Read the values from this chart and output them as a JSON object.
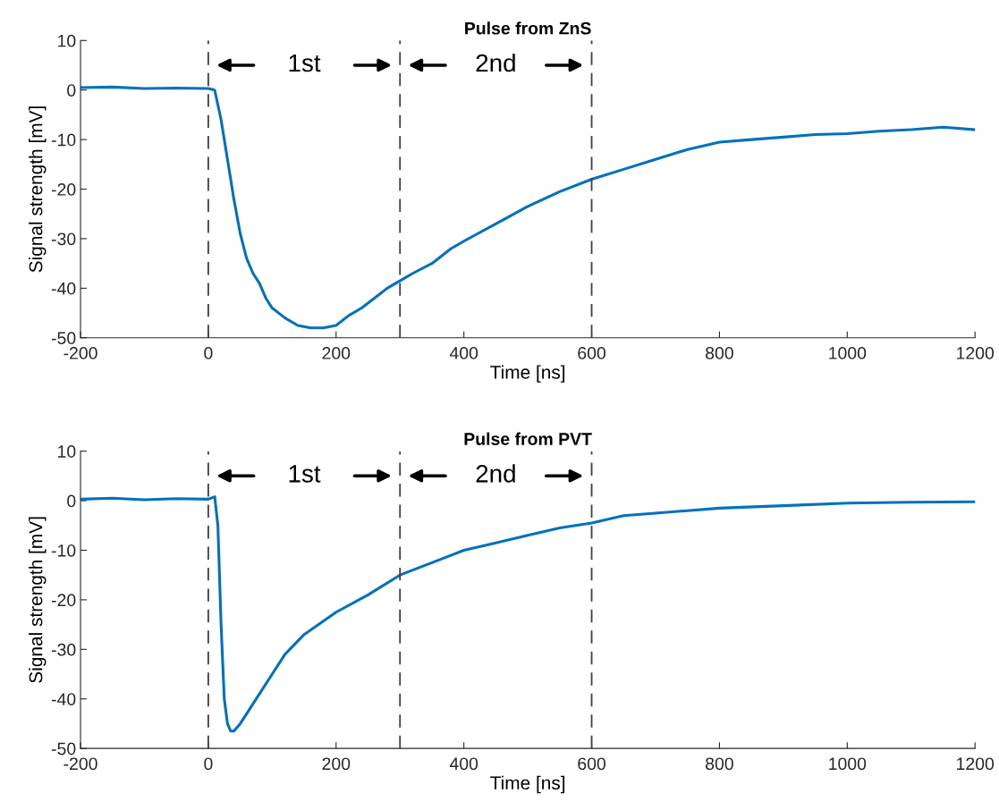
{
  "chart_data": [
    {
      "type": "line",
      "title": "Pulse from ZnS",
      "xlabel": "Time [ns]",
      "ylabel": "Signal strength [mV]",
      "xlim": [
        -200,
        1200
      ],
      "ylim": [
        -50,
        10
      ],
      "xticks": [
        -200,
        0,
        200,
        400,
        600,
        800,
        1000,
        1200
      ],
      "yticks": [
        -50,
        -40,
        -30,
        -20,
        -10,
        0,
        10
      ],
      "grid": false,
      "legend": false,
      "line_style": "solid",
      "x": [
        -200,
        -150,
        -100,
        -50,
        0,
        10,
        20,
        30,
        40,
        50,
        60,
        70,
        80,
        90,
        100,
        120,
        140,
        160,
        180,
        200,
        220,
        240,
        260,
        280,
        300,
        320,
        350,
        380,
        400,
        450,
        500,
        550,
        600,
        650,
        700,
        750,
        800,
        850,
        900,
        950,
        1000,
        1050,
        1100,
        1150,
        1200
      ],
      "series": [
        {
          "color": "#0072bd",
          "values": [
            0.5,
            0.6,
            0.3,
            0.4,
            0.3,
            0,
            -6,
            -14,
            -22,
            -29,
            -34,
            -37,
            -39,
            -42,
            -44,
            -46,
            -47.5,
            -48,
            -48,
            -47.5,
            -45.5,
            -44,
            -42,
            -40,
            -38.5,
            -37,
            -35,
            -32,
            -30.5,
            -27,
            -23.5,
            -20.5,
            -18,
            -16,
            -14,
            -12,
            -10.5,
            -10,
            -9.5,
            -9,
            -8.8,
            -8.3,
            -8,
            -7.5,
            -8
          ]
        }
      ],
      "ref_lines": [
        {
          "axis": "x",
          "value": 0,
          "color": "#404040",
          "line_style": "dashed"
        },
        {
          "axis": "x",
          "value": 300,
          "color": "#404040",
          "line_style": "dashed"
        },
        {
          "axis": "x",
          "value": 600,
          "color": "#404040",
          "line_style": "dashed"
        }
      ],
      "annotations": [
        "1st",
        "2nd"
      ]
    },
    {
      "type": "line",
      "title": "Pulse from PVT",
      "xlabel": "Time [ns]",
      "ylabel": "Signal strength [mV]",
      "xlim": [
        -200,
        1200
      ],
      "ylim": [
        -50,
        10
      ],
      "xticks": [
        -200,
        0,
        200,
        400,
        600,
        800,
        1000,
        1200
      ],
      "yticks": [
        -50,
        -40,
        -30,
        -20,
        -10,
        0,
        10
      ],
      "grid": false,
      "legend": false,
      "line_style": "solid",
      "x": [
        -200,
        -150,
        -100,
        -50,
        0,
        10,
        15,
        20,
        25,
        30,
        35,
        40,
        50,
        60,
        80,
        100,
        120,
        150,
        200,
        250,
        300,
        350,
        400,
        450,
        500,
        550,
        600,
        650,
        700,
        800,
        900,
        1000,
        1100,
        1200
      ],
      "series": [
        {
          "color": "#0072bd",
          "values": [
            0.3,
            0.5,
            0.2,
            0.4,
            0.3,
            0.8,
            -5,
            -25,
            -40,
            -45,
            -46.5,
            -46.5,
            -45,
            -43,
            -39,
            -35,
            -31,
            -27,
            -22.5,
            -19,
            -15,
            -12.5,
            -10,
            -8.5,
            -7,
            -5.5,
            -4.5,
            -3,
            -2.5,
            -1.5,
            -1,
            -0.5,
            -0.3,
            -0.2
          ]
        }
      ],
      "ref_lines": [
        {
          "axis": "x",
          "value": 0,
          "color": "#404040",
          "line_style": "dashed"
        },
        {
          "axis": "x",
          "value": 300,
          "color": "#404040",
          "line_style": "dashed"
        },
        {
          "axis": "x",
          "value": 600,
          "color": "#404040",
          "line_style": "dashed"
        }
      ],
      "annotations": [
        "1st",
        "2nd"
      ]
    }
  ]
}
